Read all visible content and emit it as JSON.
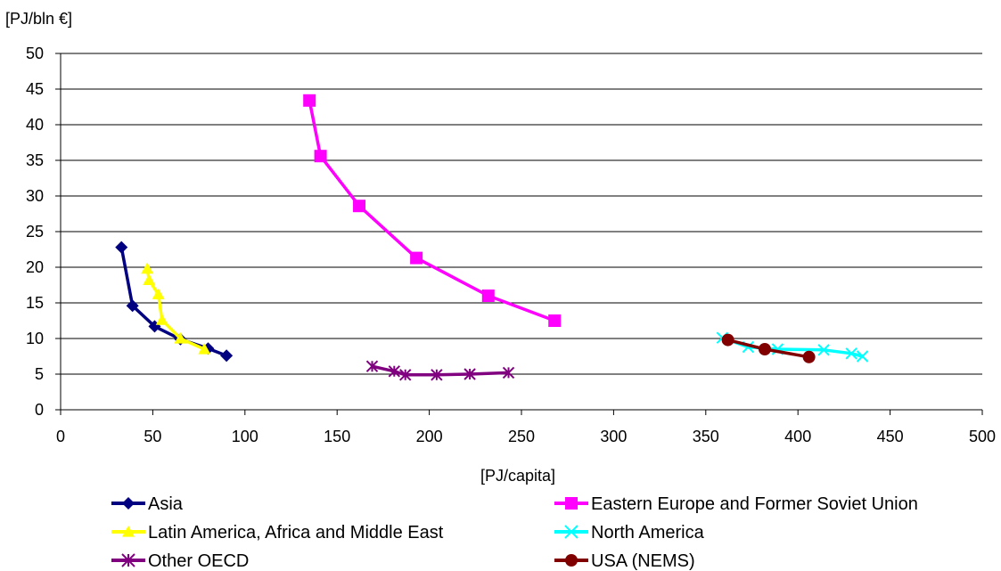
{
  "chart_data": {
    "type": "line",
    "xlabel": "[PJ/capita]",
    "ylabel": "[PJ/bln €]",
    "xlim": [
      0,
      500
    ],
    "ylim": [
      0,
      50
    ],
    "xticks": [
      "0",
      "50",
      "100",
      "150",
      "200",
      "250",
      "300",
      "350",
      "400",
      "450",
      "500"
    ],
    "yticks": [
      "0",
      "5",
      "10",
      "15",
      "20",
      "25",
      "30",
      "35",
      "40",
      "45",
      "50"
    ],
    "grid": "horizontal",
    "legend_position": "bottom",
    "series": [
      {
        "name": "Asia",
        "color": "#000080",
        "marker": "diamond",
        "points": [
          [
            33,
            22.8
          ],
          [
            39,
            14.6
          ],
          [
            51,
            11.7
          ],
          [
            65,
            9.9
          ],
          [
            80,
            8.6
          ],
          [
            90,
            7.6
          ]
        ]
      },
      {
        "name": "Eastern Europe and Former Soviet Union",
        "color": "#FF00FF",
        "marker": "square",
        "points": [
          [
            135,
            43.4
          ],
          [
            141,
            35.6
          ],
          [
            162,
            28.6
          ],
          [
            193,
            21.3
          ],
          [
            232,
            16.0
          ],
          [
            268,
            12.5
          ]
        ]
      },
      {
        "name": "Latin America, Africa and Middle East",
        "color": "#FFFF00",
        "marker": "triangle",
        "points": [
          [
            47,
            19.8
          ],
          [
            48,
            18.2
          ],
          [
            53,
            16.2
          ],
          [
            55,
            12.6
          ],
          [
            65,
            10.0
          ],
          [
            78,
            8.5
          ]
        ]
      },
      {
        "name": "North America",
        "color": "#00FFFF",
        "marker": "x",
        "points": [
          [
            359,
            10.1
          ],
          [
            373,
            8.8
          ],
          [
            389,
            8.5
          ],
          [
            414,
            8.4
          ],
          [
            429,
            7.9
          ],
          [
            435,
            7.5
          ]
        ]
      },
      {
        "name": "Other OECD",
        "color": "#800080",
        "marker": "asterisk",
        "points": [
          [
            169,
            6.1
          ],
          [
            181,
            5.4
          ],
          [
            187,
            4.9
          ],
          [
            204,
            4.9
          ],
          [
            222,
            5.0
          ],
          [
            243,
            5.2
          ]
        ]
      },
      {
        "name": "USA (NEMS)",
        "color": "#800000",
        "marker": "circle",
        "points": [
          [
            362,
            9.8
          ],
          [
            382,
            8.5
          ],
          [
            406,
            7.4
          ]
        ]
      }
    ]
  }
}
